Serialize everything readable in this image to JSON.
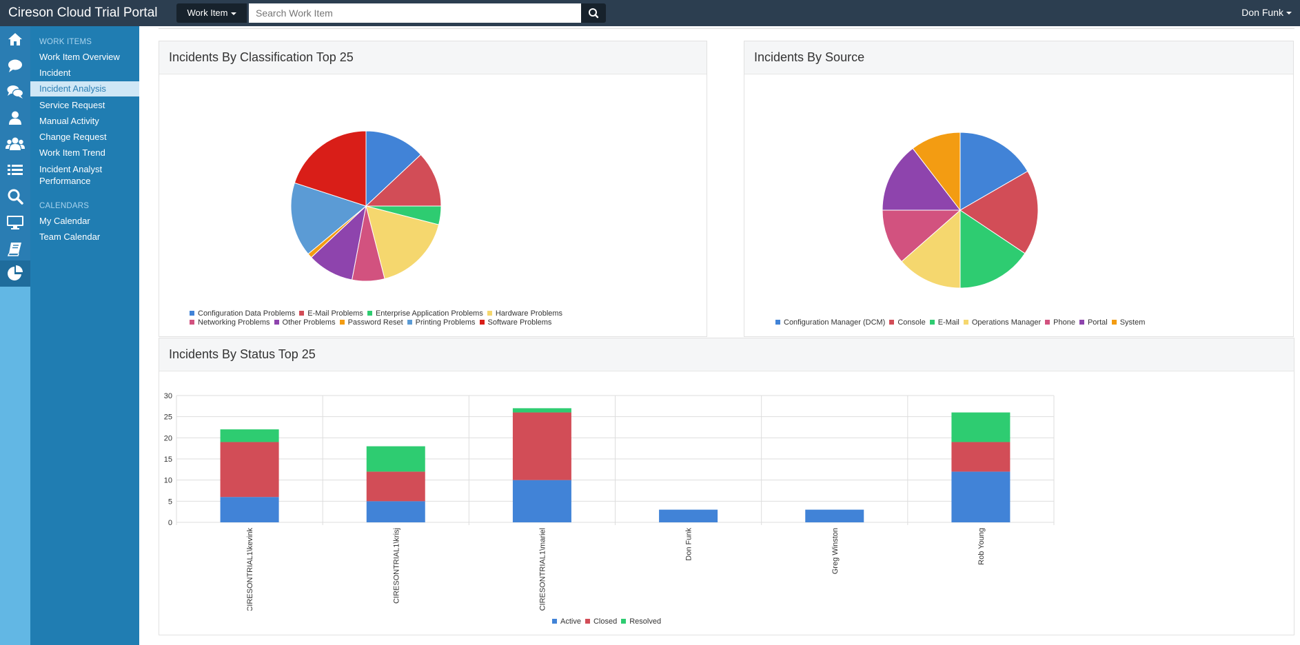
{
  "header": {
    "title": "Cireson Cloud Trial Portal",
    "work_item_label": "Work Item",
    "search_placeholder": "Search Work Item",
    "user": "Don Funk"
  },
  "colors": {
    "topbar": "#2c3e50",
    "sidebar": "#207db2",
    "iconbar": "#62b7e4"
  },
  "iconbar": {
    "icons": [
      "home-icon",
      "comment-icon",
      "comments-icon",
      "user-icon",
      "users-icon",
      "list-icon",
      "search-icon",
      "monitor-icon",
      "book-icon",
      "pie-chart-icon"
    ]
  },
  "sidebar": {
    "work_items_heading": "WORK ITEMS",
    "items": [
      {
        "label": "Work Item Overview"
      },
      {
        "label": "Incident"
      },
      {
        "label": "Incident Analysis"
      },
      {
        "label": "Service Request"
      },
      {
        "label": "Manual Activity"
      },
      {
        "label": "Change Request"
      },
      {
        "label": "Work Item Trend"
      },
      {
        "label": "Incident Analyst Performance"
      }
    ],
    "calendars_heading": "CALENDARS",
    "calendar_items": [
      {
        "label": "My Calendar"
      },
      {
        "label": "Team Calendar"
      }
    ]
  },
  "panels": {
    "classification_title": "Incidents By Classification Top 25",
    "source_title": "Incidents By Source",
    "status_title": "Incidents By Status Top 25"
  },
  "chart_data": [
    {
      "type": "pie",
      "title": "Incidents By Classification Top 25",
      "labels": [
        "Configuration Data Problems",
        "E-Mail Problems",
        "Enterprise Application Problems",
        "Hardware Problems",
        "Networking Problems",
        "Other Problems",
        "Password Reset",
        "Printing Problems",
        "Software Problems"
      ],
      "values": [
        13,
        12,
        4,
        17,
        7,
        10,
        1,
        16,
        20
      ],
      "colors": [
        "#4183d7",
        "#d24d57",
        "#2ecc71",
        "#f5d76e",
        "#d2527f",
        "#8e44ad",
        "#f39c12",
        "#5b9bd5",
        "#d91e18"
      ],
      "legend": "bottom"
    },
    {
      "type": "pie",
      "title": "Incidents By Source",
      "labels": [
        "Configuration Manager (DCM)",
        "Console",
        "E-Mail",
        "Operations Manager",
        "Phone",
        "Portal",
        "System"
      ],
      "values": [
        16,
        17,
        15,
        13,
        11,
        14,
        10
      ],
      "colors": [
        "#4183d7",
        "#d24d57",
        "#2ecc71",
        "#f5d76e",
        "#d2527f",
        "#8e44ad",
        "#f39c12"
      ],
      "legend": "bottom"
    },
    {
      "type": "bar",
      "stacked": true,
      "title": "Incidents By Status Top 25",
      "categories": [
        "CIRESONTRIAL1\\kevink",
        "CIRESONTRIAL1\\krisj",
        "CIRESONTRIAL1\\mariel",
        "Don Funk",
        "Greg Winston",
        "Rob Young"
      ],
      "series": [
        {
          "name": "Active",
          "color": "#4183d7",
          "values": [
            6,
            5,
            10,
            3,
            3,
            12
          ]
        },
        {
          "name": "Closed",
          "color": "#d24d57",
          "values": [
            13,
            7,
            16,
            0,
            0,
            7
          ]
        },
        {
          "name": "Resolved",
          "color": "#2ecc71",
          "values": [
            3,
            6,
            1,
            0,
            0,
            7
          ]
        }
      ],
      "ylim": [
        0,
        30
      ],
      "yticks": [
        0,
        5,
        10,
        15,
        20,
        25,
        30
      ],
      "grid": true,
      "legend": "bottom"
    }
  ]
}
